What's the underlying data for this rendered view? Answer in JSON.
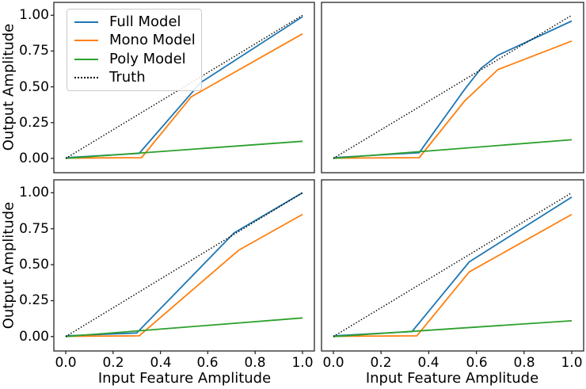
{
  "figure": {
    "background": "#ffffff",
    "spine_color": "#262626",
    "text_color": "#000000",
    "y_axis_label": "Output Amplitude",
    "x_axis_label": "Input Feature Amplitude",
    "x_tick_labels": [
      "0.0",
      "0.2",
      "0.4",
      "0.6",
      "0.8",
      "1.0"
    ],
    "y_tick_labels": [
      "0.00",
      "0.25",
      "0.50",
      "0.75",
      "1.00"
    ],
    "x_tick_values": [
      0,
      0.2,
      0.4,
      0.6,
      0.8,
      1.0
    ],
    "y_tick_values": [
      0,
      0.25,
      0.5,
      0.75,
      1.0
    ],
    "legend": {
      "position": "upper-left-of-first-subplot",
      "items": [
        {
          "label": "Full Model",
          "color": "#1f77b4",
          "style": "solid"
        },
        {
          "label": "Mono Model",
          "color": "#ff7f0e",
          "style": "solid"
        },
        {
          "label": "Poly Model",
          "color": "#2ca02c",
          "style": "solid"
        },
        {
          "label": "Truth",
          "color": "#000000",
          "style": "dotted"
        }
      ]
    }
  },
  "chart_data": [
    {
      "type": "line",
      "position": "top-left",
      "title": "",
      "xlabel": "Input Feature Amplitude",
      "ylabel": "Output Amplitude",
      "xlim": [
        -0.05,
        1.05
      ],
      "ylim": [
        -0.1,
        1.09
      ],
      "x_ticks": [
        0,
        0.2,
        0.4,
        0.6,
        0.8,
        1.0
      ],
      "y_ticks": [
        0,
        0.25,
        0.5,
        0.75,
        1.0
      ],
      "grid": false,
      "series": [
        {
          "name": "Full Model",
          "points": [
            [
              0,
              0.005
            ],
            [
              0.31,
              0.035
            ],
            [
              0.57,
              0.53
            ],
            [
              1.0,
              0.99
            ]
          ]
        },
        {
          "name": "Mono Model",
          "points": [
            [
              0,
              0.002
            ],
            [
              0.32,
              0.005
            ],
            [
              0.53,
              0.43
            ],
            [
              1.0,
              0.87
            ]
          ]
        },
        {
          "name": "Poly Model",
          "points": [
            [
              0,
              0.0
            ],
            [
              1.0,
              0.12
            ]
          ]
        },
        {
          "name": "Truth",
          "points": [
            [
              0,
              0.0
            ],
            [
              1.0,
              1.0
            ]
          ]
        }
      ]
    },
    {
      "type": "line",
      "position": "top-right",
      "title": "",
      "xlabel": "Input Feature Amplitude",
      "ylabel": "Output Amplitude",
      "xlim": [
        -0.05,
        1.05
      ],
      "ylim": [
        -0.1,
        1.09
      ],
      "x_ticks": [
        0,
        0.2,
        0.4,
        0.6,
        0.8,
        1.0
      ],
      "y_ticks": [
        0,
        0.25,
        0.5,
        0.75,
        1.0
      ],
      "grid": false,
      "series": [
        {
          "name": "Full Model",
          "points": [
            [
              0,
              0.005
            ],
            [
              0.36,
              0.04
            ],
            [
              0.55,
              0.48
            ],
            [
              0.62,
              0.63
            ],
            [
              0.69,
              0.72
            ],
            [
              1.0,
              0.96
            ]
          ]
        },
        {
          "name": "Mono Model",
          "points": [
            [
              0,
              0.002
            ],
            [
              0.36,
              0.005
            ],
            [
              0.55,
              0.4
            ],
            [
              0.69,
              0.62
            ],
            [
              1.0,
              0.82
            ]
          ]
        },
        {
          "name": "Poly Model",
          "points": [
            [
              0,
              0.0
            ],
            [
              1.0,
              0.13
            ]
          ]
        },
        {
          "name": "Truth",
          "points": [
            [
              0,
              0.0
            ],
            [
              1.0,
              1.0
            ]
          ]
        }
      ]
    },
    {
      "type": "line",
      "position": "bottom-left",
      "title": "",
      "xlabel": "Input Feature Amplitude",
      "ylabel": "Output Amplitude",
      "xlim": [
        -0.05,
        1.05
      ],
      "ylim": [
        -0.1,
        1.09
      ],
      "x_ticks": [
        0,
        0.2,
        0.4,
        0.6,
        0.8,
        1.0
      ],
      "y_ticks": [
        0,
        0.25,
        0.5,
        0.75,
        1.0
      ],
      "grid": false,
      "series": [
        {
          "name": "Full Model",
          "points": [
            [
              0,
              0.005
            ],
            [
              0.3,
              0.025
            ],
            [
              0.71,
              0.72
            ],
            [
              1.0,
              1.0
            ]
          ]
        },
        {
          "name": "Mono Model",
          "points": [
            [
              0,
              0.002
            ],
            [
              0.31,
              0.005
            ],
            [
              0.73,
              0.6
            ],
            [
              1.0,
              0.85
            ]
          ]
        },
        {
          "name": "Poly Model",
          "points": [
            [
              0,
              0.0
            ],
            [
              1.0,
              0.13
            ]
          ]
        },
        {
          "name": "Truth",
          "points": [
            [
              0,
              0.0
            ],
            [
              1.0,
              1.0
            ]
          ]
        }
      ]
    },
    {
      "type": "line",
      "position": "bottom-right",
      "title": "",
      "xlabel": "Input Feature Amplitude",
      "ylabel": "Output Amplitude",
      "xlim": [
        -0.05,
        1.05
      ],
      "ylim": [
        -0.1,
        1.09
      ],
      "x_ticks": [
        0,
        0.2,
        0.4,
        0.6,
        0.8,
        1.0
      ],
      "y_ticks": [
        0,
        0.25,
        0.5,
        0.75,
        1.0
      ],
      "grid": false,
      "series": [
        {
          "name": "Full Model",
          "points": [
            [
              0,
              0.005
            ],
            [
              0.33,
              0.035
            ],
            [
              0.57,
              0.52
            ],
            [
              1.0,
              0.97
            ]
          ]
        },
        {
          "name": "Mono Model",
          "points": [
            [
              0,
              0.002
            ],
            [
              0.35,
              0.005
            ],
            [
              0.57,
              0.45
            ],
            [
              1.0,
              0.85
            ]
          ]
        },
        {
          "name": "Poly Model",
          "points": [
            [
              0,
              0.0
            ],
            [
              1.0,
              0.11
            ]
          ]
        },
        {
          "name": "Truth",
          "points": [
            [
              0,
              0.0
            ],
            [
              1.0,
              1.0
            ]
          ]
        }
      ]
    }
  ]
}
